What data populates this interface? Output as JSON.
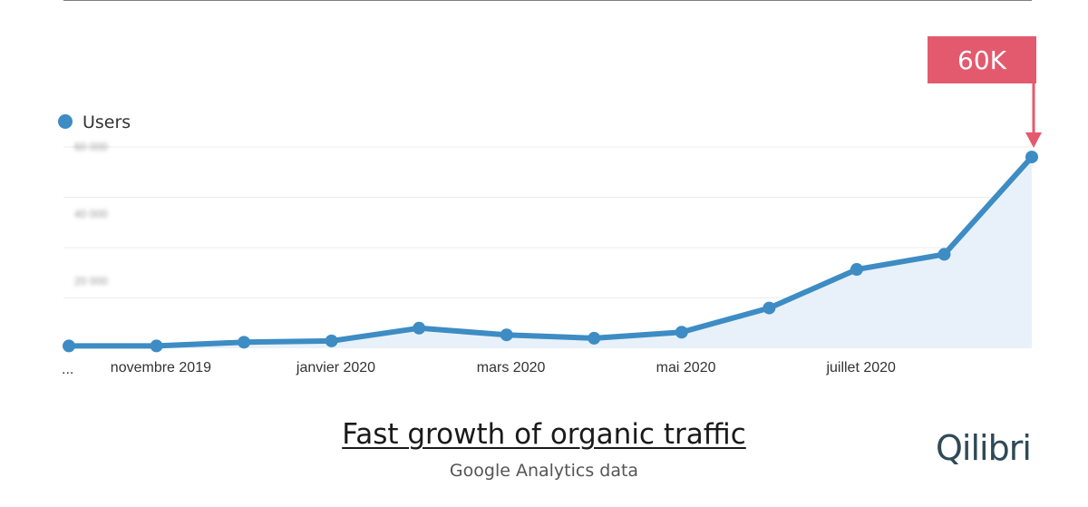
{
  "legend": {
    "label": "Users",
    "color": "#3d8cc4"
  },
  "callout": {
    "label": "60K",
    "color": "#e35a6e"
  },
  "caption": {
    "title": "Fast growth of organic traffic",
    "subtitle": "Google Analytics data"
  },
  "logo": {
    "text": "Qilibri"
  },
  "chart_data": {
    "type": "area",
    "series": [
      {
        "name": "Users",
        "color": "#3d8cc4",
        "fill": "#e8f1f9",
        "values": [
          700,
          700,
          1800,
          2200,
          6000,
          4000,
          3000,
          4800,
          12000,
          23500,
          28000,
          57000
        ]
      }
    ],
    "x_ticks": [
      "...",
      "novembre 2019",
      "janvier 2020",
      "mars 2020",
      "mai 2020",
      "juillet 2020"
    ],
    "y_ticks_obscured": [
      "60 000",
      "40 000",
      "20 000"
    ],
    "ylim": [
      0,
      60000
    ],
    "grid": true,
    "legend_position": "top-left"
  }
}
